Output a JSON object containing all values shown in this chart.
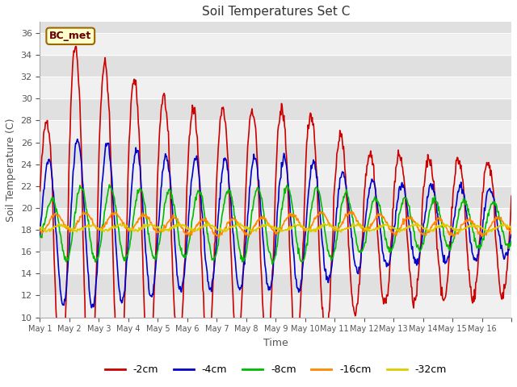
{
  "title": "Soil Temperatures Set C",
  "xlabel": "Time",
  "ylabel": "Soil Temperature (C)",
  "ylim": [
    10,
    37
  ],
  "yticks": [
    10,
    12,
    14,
    16,
    18,
    20,
    22,
    24,
    26,
    28,
    30,
    32,
    34,
    36
  ],
  "fig_bg": "#ffffff",
  "plot_bg": "#ffffff",
  "annotation_text": "BC_met",
  "annotation_bg": "#ffffcc",
  "annotation_border": "#996600",
  "series": [
    {
      "label": "-2cm",
      "color": "#cc0000",
      "lw": 1.2
    },
    {
      "label": "-4cm",
      "color": "#0000cc",
      "lw": 1.2
    },
    {
      "label": "-8cm",
      "color": "#00bb00",
      "lw": 1.2
    },
    {
      "label": "-16cm",
      "color": "#ff8800",
      "lw": 1.2
    },
    {
      "label": "-32cm",
      "color": "#ddcc00",
      "lw": 1.2
    }
  ],
  "x_tick_labels": [
    "May 1",
    "May 2",
    "May 3",
    "May 4",
    "May 5",
    "May 6",
    "May 7",
    "May 8",
    "May 9",
    "May 10",
    "May 11",
    "May 12",
    "May 13",
    "May 14",
    "May 15",
    "May 16"
  ],
  "n_days": 16,
  "pts_per_day": 48,
  "band_colors": [
    "#f0f0f0",
    "#e0e0e0"
  ]
}
